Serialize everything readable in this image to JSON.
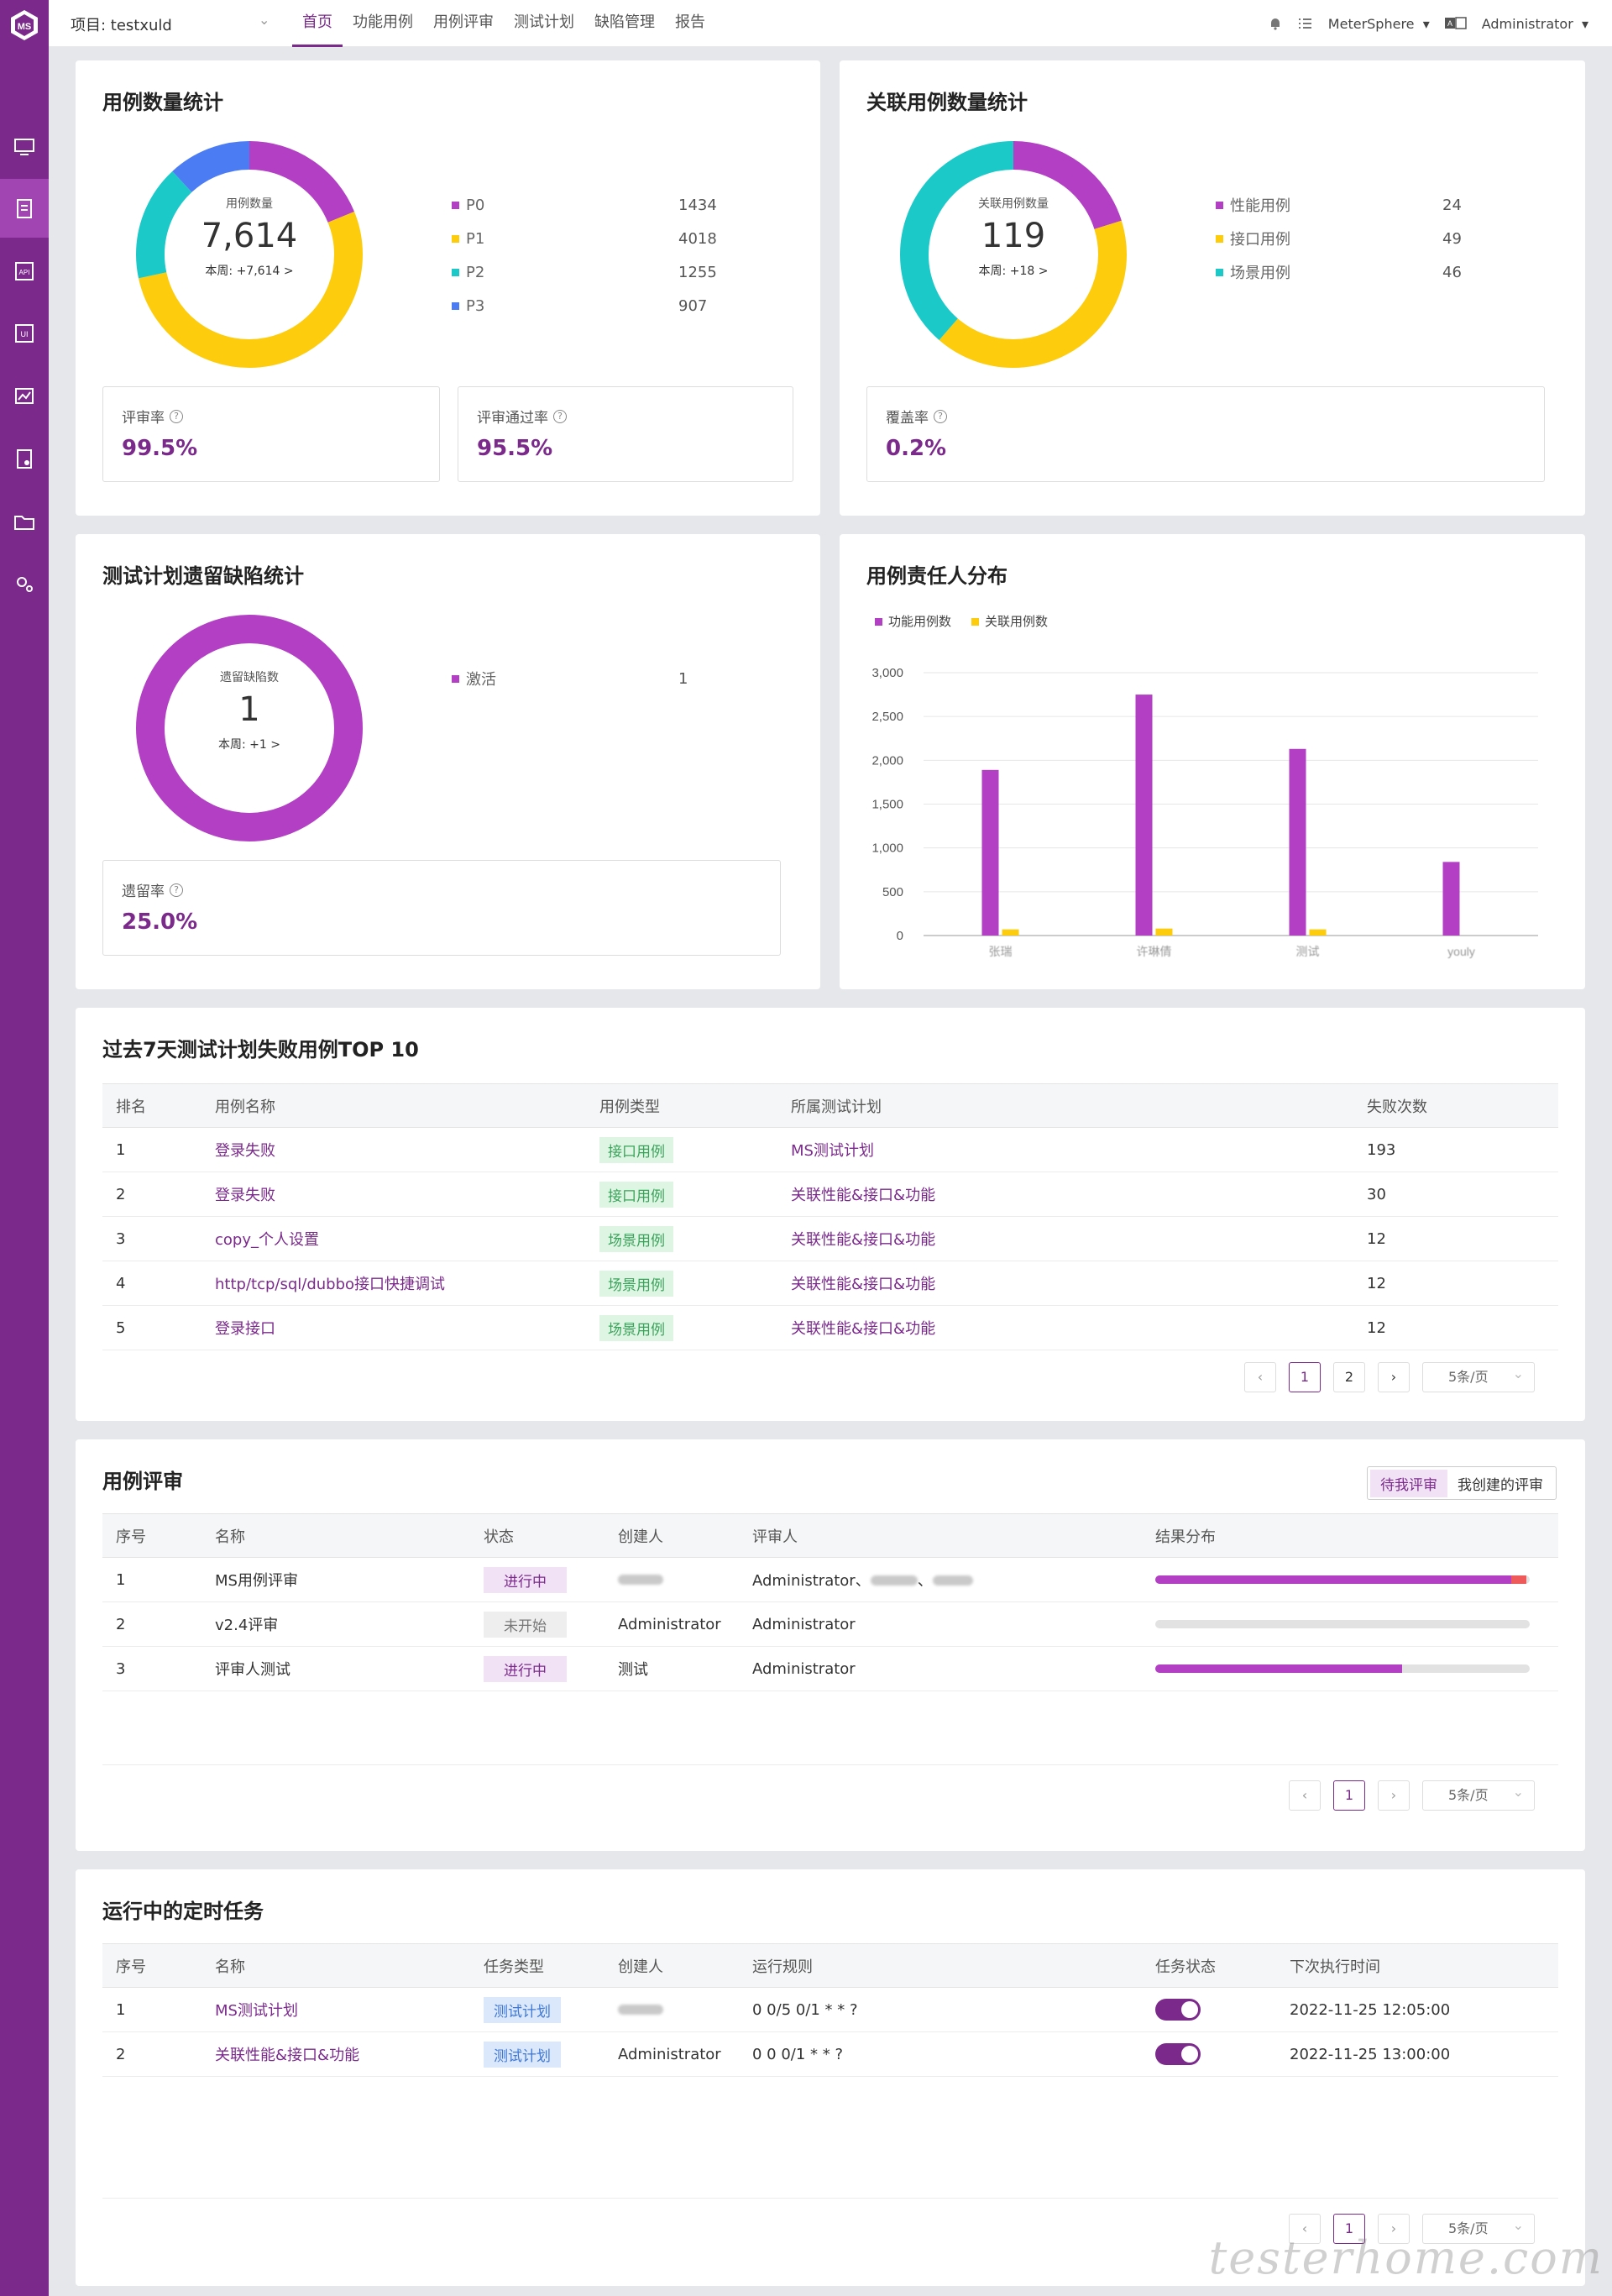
{
  "topbar": {
    "project_label": "项目: testxuld",
    "nav": [
      "首页",
      "功能用例",
      "用例评审",
      "测试计划",
      "缺陷管理",
      "报告"
    ],
    "workspace": "MeterSphere",
    "user": "Administrator"
  },
  "case_count": {
    "title": "用例数量统计",
    "center_label": "用例数量",
    "center_value": "7,614",
    "center_week": "本周: +7,614 >",
    "legend": [
      {
        "name": "P0",
        "value": "1434",
        "color": "#b23fc4"
      },
      {
        "name": "P1",
        "value": "4018",
        "color": "#fdcc0d"
      },
      {
        "name": "P2",
        "value": "1255",
        "color": "#1cc9c9"
      },
      {
        "name": "P3",
        "value": "907",
        "color": "#4c7cf4"
      }
    ],
    "metrics": [
      {
        "label": "评审率",
        "value": "99.5%"
      },
      {
        "label": "评审通过率",
        "value": "95.5%"
      }
    ]
  },
  "related_count": {
    "title": "关联用例数量统计",
    "center_label": "关联用例数量",
    "center_value": "119",
    "center_week": "本周: +18 >",
    "legend": [
      {
        "name": "性能用例",
        "value": "24",
        "color": "#b23fc4"
      },
      {
        "name": "接口用例",
        "value": "49",
        "color": "#fdcc0d"
      },
      {
        "name": "场景用例",
        "value": "46",
        "color": "#1cc9c9"
      }
    ],
    "metrics": [
      {
        "label": "覆盖率",
        "value": "0.2%"
      }
    ]
  },
  "defect": {
    "title": "测试计划遗留缺陷统计",
    "center_label": "遗留缺陷数",
    "center_value": "1",
    "center_week": "本周: +1 >",
    "legend": [
      {
        "name": "激活",
        "value": "1",
        "color": "#b23fc4"
      }
    ],
    "metrics": [
      {
        "label": "遗留率",
        "value": "25.0%"
      }
    ]
  },
  "owner": {
    "title": "用例责任人分布"
  },
  "chart_data": {
    "type": "bar",
    "categories": [
      "张瑞",
      "许琳倩",
      "测试",
      "youly"
    ],
    "series": [
      {
        "name": "功能用例数",
        "values": [
          1890,
          2750,
          2130,
          840
        ],
        "color": "#b23fc4"
      },
      {
        "name": "关联用例数",
        "values": [
          70,
          80,
          70,
          0
        ],
        "color": "#fdcc0d"
      }
    ],
    "yticks": [
      "3,000",
      "2,500",
      "2,000",
      "1,500",
      "1,000",
      "500",
      "0"
    ],
    "ylim": [
      0,
      3000
    ],
    "legend_position": "top-left",
    "grid": true
  },
  "fail_top": {
    "title": "过去7天测试计划失败用例TOP 10",
    "headers": [
      "排名",
      "用例名称",
      "用例类型",
      "所属测试计划",
      "失败次数"
    ],
    "rows": [
      [
        "1",
        "登录失败",
        "接口用例",
        "MS测试计划",
        "193"
      ],
      [
        "2",
        "登录失败",
        "接口用例",
        "关联性能&接口&功能",
        "30"
      ],
      [
        "3",
        "copy_个人设置",
        "场景用例",
        "关联性能&接口&功能",
        "12"
      ],
      [
        "4",
        "http/tcp/sql/dubbo接口快捷调试",
        "场景用例",
        "关联性能&接口&功能",
        "12"
      ],
      [
        "5",
        "登录接口",
        "场景用例",
        "关联性能&接口&功能",
        "12"
      ]
    ],
    "pages": [
      "1",
      "2"
    ],
    "page_size": "5条/页"
  },
  "review": {
    "title": "用例评审",
    "tabs": [
      "待我评审",
      "我创建的评审"
    ],
    "headers": [
      "序号",
      "名称",
      "状态",
      "创建人",
      "评审人",
      "结果分布"
    ],
    "rows": [
      {
        "no": "1",
        "name": "MS用例评审",
        "status": "进行中",
        "creator": "",
        "reviewers": "Administrator、",
        "result": 0.95,
        "fail": 0.04
      },
      {
        "no": "2",
        "name": "v2.4评审",
        "status": "未开始",
        "creator": "Administrator",
        "reviewers": "Administrator",
        "result": 0,
        "fail": 0
      },
      {
        "no": "3",
        "name": "评审人测试",
        "status": "进行中",
        "creator": "测试",
        "reviewers": "Administrator",
        "result": 0.66,
        "fail": 0
      }
    ],
    "pages": [
      "1"
    ],
    "page_size": "5条/页"
  },
  "tasks": {
    "title": "运行中的定时任务",
    "headers": [
      "序号",
      "名称",
      "任务类型",
      "创建人",
      "运行规则",
      "任务状态",
      "下次执行时间"
    ],
    "rows": [
      {
        "no": "1",
        "name": "MS测试计划",
        "type": "测试计划",
        "creator": "",
        "rule": "0 0/5 0/1 * * ?",
        "next": "2022-11-25 12:05:00"
      },
      {
        "no": "2",
        "name": "关联性能&接口&功能",
        "type": "测试计划",
        "creator": "Administrator",
        "rule": "0 0 0/1 * * ?",
        "next": "2022-11-25 13:00:00"
      }
    ],
    "pages": [
      "1"
    ],
    "page_size": "5条/页"
  },
  "watermark": "testerhome.com"
}
